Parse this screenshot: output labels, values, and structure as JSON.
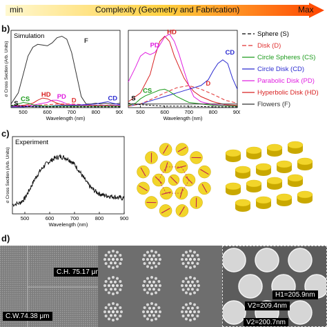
{
  "complexity_bar": {
    "min_label": "min",
    "center_label": "Complexity (Geometry and Fabrication)",
    "max_label": "Max"
  },
  "panels": {
    "b_label": "b)",
    "c_label": "c)",
    "d_label": "d)"
  },
  "panel_b_left": {
    "title": "Simulation",
    "ylabel": "σ Cross Section (Arb. Units)",
    "xlabel": "Wavelength (nm)",
    "xticks": [
      "500",
      "600",
      "700",
      "800",
      "900"
    ],
    "annotations": {
      "F": "F",
      "HD": "HD",
      "PD": "PD",
      "D": "D",
      "CD": "CD",
      "CS": "CS",
      "S": "S"
    }
  },
  "panel_b_right": {
    "xlabel": "Wavelength (nm)",
    "xticks": [
      "500",
      "600",
      "700",
      "800",
      "900"
    ],
    "annotations": {
      "HD": "HD",
      "PD": "PD",
      "CD": "CD",
      "D": "D",
      "CS": "CS",
      "S": "S"
    }
  },
  "legend": [
    {
      "label": "Sphere (S)",
      "color": "#000000",
      "dash": "5,3"
    },
    {
      "label": "Disk (D)",
      "color": "#e03030",
      "dash": "6,3"
    },
    {
      "label": "Circle Spheres (CS)",
      "color": "#1a9a1a",
      "dash": ""
    },
    {
      "label": "Circle Disk (CD)",
      "color": "#2a2ad0",
      "dash": ""
    },
    {
      "label": "Parabolic Disk (PD)",
      "color": "#e020e0",
      "dash": ""
    },
    {
      "label": "Hyperbolic Disk (HD)",
      "color": "#d82020",
      "dash": ""
    },
    {
      "label": "Flowers (F)",
      "color": "#333333",
      "dash": ""
    }
  ],
  "panel_c": {
    "title": "Experiment",
    "ylabel": "σ Cross Section (Arb. Units)",
    "xlabel": "Wavelength (nm)",
    "xticks": [
      "500",
      "600",
      "700",
      "800",
      "900"
    ]
  },
  "panel_d": {
    "label_ch": "C.H. 75.17 μm",
    "label_cw": "C.W.74.38 μm",
    "label_h1": "H1=205.9nm",
    "label_v1": "V2=209.4nm",
    "label_v2": "V2=200.7nm"
  },
  "chart_data": [
    {
      "type": "line",
      "title": "Simulation",
      "xlabel": "Wavelength (nm)",
      "ylabel": "σ Cross Section (Arb. Units)",
      "xlim": [
        450,
        900
      ],
      "ylim": [
        0,
        1.05
      ],
      "series": [
        {
          "name": "F",
          "color": "#333333",
          "x": [
            450,
            480,
            500,
            520,
            540,
            560,
            580,
            600,
            620,
            640,
            660,
            680,
            700,
            720,
            740,
            760,
            780,
            800,
            820,
            840,
            860,
            880,
            900
          ],
          "y": [
            0.05,
            0.2,
            0.45,
            0.7,
            0.82,
            0.86,
            0.85,
            0.84,
            0.88,
            0.95,
            0.97,
            0.93,
            0.75,
            0.45,
            0.15,
            0.05,
            0.05,
            0.06,
            0.05,
            0.06,
            0.05,
            0.05,
            0.06
          ]
        },
        {
          "name": "HD",
          "color": "#d82020",
          "x": [
            450,
            500,
            540,
            560,
            580,
            600,
            620,
            640,
            660,
            700,
            750,
            800,
            850,
            900
          ],
          "y": [
            0.02,
            0.03,
            0.06,
            0.1,
            0.13,
            0.12,
            0.09,
            0.06,
            0.04,
            0.03,
            0.03,
            0.03,
            0.03,
            0.03
          ]
        },
        {
          "name": "PD",
          "color": "#e020e0",
          "x": [
            450,
            500,
            550,
            600,
            620,
            640,
            660,
            680,
            700,
            750,
            800,
            850,
            900
          ],
          "y": [
            0.02,
            0.02,
            0.04,
            0.07,
            0.1,
            0.1,
            0.08,
            0.05,
            0.04,
            0.03,
            0.03,
            0.03,
            0.03
          ]
        },
        {
          "name": "D",
          "color": "#e03030",
          "x": [
            450,
            500,
            550,
            600,
            650,
            700,
            750,
            800,
            850,
            900
          ],
          "y": [
            0.01,
            0.02,
            0.03,
            0.04,
            0.05,
            0.05,
            0.04,
            0.03,
            0.03,
            0.02
          ]
        },
        {
          "name": "CD",
          "color": "#2a2ad0",
          "x": [
            450,
            500,
            550,
            600,
            650,
            700,
            750,
            800,
            830,
            850,
            870,
            900
          ],
          "y": [
            0.01,
            0.01,
            0.02,
            0.02,
            0.03,
            0.03,
            0.04,
            0.05,
            0.07,
            0.08,
            0.06,
            0.04
          ]
        },
        {
          "name": "CS",
          "color": "#1a9a1a",
          "x": [
            450,
            480,
            500,
            520,
            550,
            600,
            650,
            700,
            800,
            900
          ],
          "y": [
            0.02,
            0.05,
            0.07,
            0.06,
            0.03,
            0.02,
            0.02,
            0.02,
            0.02,
            0.02
          ]
        },
        {
          "name": "S",
          "color": "#000000",
          "x": [
            450,
            470,
            500,
            550,
            600,
            700,
            800,
            900
          ],
          "y": [
            0.03,
            0.03,
            0.02,
            0.01,
            0.01,
            0.01,
            0.01,
            0.01
          ]
        }
      ]
    },
    {
      "type": "line",
      "xlabel": "Wavelength (nm)",
      "xlim": [
        450,
        900
      ],
      "ylim": [
        0,
        1.05
      ],
      "series": [
        {
          "name": "HD",
          "color": "#d82020",
          "x": [
            450,
            500,
            540,
            560,
            580,
            600,
            620,
            640,
            660,
            680,
            700,
            720,
            750,
            800,
            850,
            900
          ],
          "y": [
            0.08,
            0.2,
            0.45,
            0.7,
            0.9,
            0.97,
            0.9,
            0.7,
            0.55,
            0.4,
            0.3,
            0.22,
            0.15,
            0.08,
            0.04,
            0.03
          ]
        },
        {
          "name": "PD",
          "color": "#e020e0",
          "x": [
            450,
            480,
            500,
            520,
            540,
            560,
            580,
            600,
            620,
            640,
            660,
            680,
            700,
            720,
            750,
            800,
            900
          ],
          "y": [
            0.35,
            0.55,
            0.7,
            0.75,
            0.72,
            0.75,
            0.85,
            0.96,
            1.0,
            0.9,
            0.72,
            0.5,
            0.3,
            0.15,
            0.08,
            0.04,
            0.02
          ]
        },
        {
          "name": "CD",
          "color": "#2a2ad0",
          "x": [
            450,
            500,
            550,
            600,
            650,
            700,
            750,
            780,
            800,
            820,
            840,
            860,
            880,
            900
          ],
          "y": [
            0.02,
            0.05,
            0.1,
            0.15,
            0.2,
            0.25,
            0.3,
            0.38,
            0.5,
            0.6,
            0.65,
            0.6,
            0.4,
            0.25
          ]
        },
        {
          "name": "D",
          "color": "#e03030",
          "x": [
            450,
            500,
            550,
            600,
            650,
            700,
            750,
            800,
            850,
            900
          ],
          "y": [
            0.02,
            0.05,
            0.12,
            0.2,
            0.27,
            0.3,
            0.25,
            0.18,
            0.1,
            0.06
          ]
        },
        {
          "name": "CS",
          "color": "#1a9a1a",
          "x": [
            450,
            480,
            500,
            520,
            550,
            580,
            600,
            620,
            650,
            700,
            800,
            900
          ],
          "y": [
            0.03,
            0.06,
            0.12,
            0.16,
            0.2,
            0.24,
            0.25,
            0.22,
            0.15,
            0.07,
            0.03,
            0.02
          ]
        },
        {
          "name": "S",
          "color": "#000000",
          "x": [
            450,
            470,
            500,
            550,
            600,
            700,
            800,
            900
          ],
          "y": [
            0.06,
            0.05,
            0.04,
            0.03,
            0.02,
            0.02,
            0.01,
            0.01
          ]
        },
        {
          "name": "F",
          "color": "#333333",
          "x": [
            450,
            500,
            550,
            600,
            650,
            700,
            800,
            900
          ],
          "y": [
            0.05,
            0.05,
            0.05,
            0.05,
            0.05,
            0.05,
            0.05,
            0.05
          ]
        }
      ]
    },
    {
      "type": "line",
      "title": "Experiment",
      "xlabel": "Wavelength (nm)",
      "ylabel": "σ Cross Section (Arb. Units)",
      "xlim": [
        450,
        900
      ],
      "ylim": [
        0,
        1.0
      ],
      "series": [
        {
          "name": "",
          "color": "#111111",
          "x": [
            450,
            480,
            500,
            520,
            540,
            560,
            580,
            600,
            620,
            640,
            660,
            680,
            700,
            720,
            740,
            760,
            780,
            800,
            820,
            840,
            860,
            880,
            900
          ],
          "y": [
            0.12,
            0.14,
            0.2,
            0.32,
            0.45,
            0.55,
            0.63,
            0.68,
            0.72,
            0.74,
            0.73,
            0.7,
            0.64,
            0.55,
            0.45,
            0.36,
            0.3,
            0.26,
            0.24,
            0.23,
            0.22,
            0.21,
            0.2
          ]
        }
      ]
    }
  ]
}
